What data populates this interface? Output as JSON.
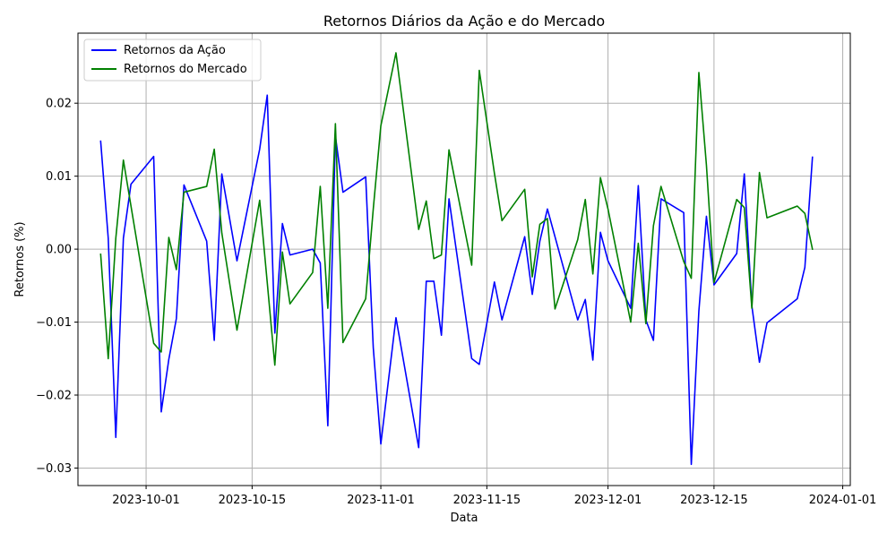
{
  "chart_data": {
    "type": "line",
    "title": "Retornos Diários da Ação e do Mercado",
    "xlabel": "Data",
    "ylabel": "Retornos (%)",
    "x_axis_type": "date",
    "xlim": [
      "2023-09-22",
      "2024-01-02"
    ],
    "ylim": [
      -0.0324,
      0.0296
    ],
    "grid": true,
    "legend_position": "upper-left",
    "x_ticks": [
      {
        "date": "2023-10-01",
        "label": "2023-10-01"
      },
      {
        "date": "2023-10-15",
        "label": "2023-10-15"
      },
      {
        "date": "2023-11-01",
        "label": "2023-11-01"
      },
      {
        "date": "2023-11-15",
        "label": "2023-11-15"
      },
      {
        "date": "2023-12-01",
        "label": "2023-12-01"
      },
      {
        "date": "2023-12-15",
        "label": "2023-12-15"
      },
      {
        "date": "2024-01-01",
        "label": "2024-01-01"
      }
    ],
    "y_ticks": [
      {
        "value": -0.03,
        "label": "−0.03"
      },
      {
        "value": -0.02,
        "label": "−0.02"
      },
      {
        "value": -0.01,
        "label": "−0.01"
      },
      {
        "value": 0.0,
        "label": "0.00"
      },
      {
        "value": 0.01,
        "label": "0.01"
      },
      {
        "value": 0.02,
        "label": "0.02"
      }
    ],
    "series": [
      {
        "name": "Retornos da Ação",
        "color": "#0000ff",
        "points": [
          {
            "x": "2023-09-25",
            "y": 0.0148
          },
          {
            "x": "2023-09-26",
            "y": 0.0015
          },
          {
            "x": "2023-09-27",
            "y": -0.0258
          },
          {
            "x": "2023-09-28",
            "y": 0.0015
          },
          {
            "x": "2023-09-29",
            "y": 0.0089
          },
          {
            "x": "2023-10-02",
            "y": 0.0127
          },
          {
            "x": "2023-10-03",
            "y": -0.0223
          },
          {
            "x": "2023-10-04",
            "y": -0.0151
          },
          {
            "x": "2023-10-05",
            "y": -0.0095
          },
          {
            "x": "2023-10-06",
            "y": 0.0088
          },
          {
            "x": "2023-10-09",
            "y": 0.0011
          },
          {
            "x": "2023-10-10",
            "y": -0.0125
          },
          {
            "x": "2023-10-11",
            "y": 0.0103
          },
          {
            "x": "2023-10-13",
            "y": -0.0016
          },
          {
            "x": "2023-10-16",
            "y": 0.0137
          },
          {
            "x": "2023-10-17",
            "y": 0.0211
          },
          {
            "x": "2023-10-18",
            "y": -0.0115
          },
          {
            "x": "2023-10-19",
            "y": 0.0035
          },
          {
            "x": "2023-10-20",
            "y": -0.0008
          },
          {
            "x": "2023-10-23",
            "y": 0.0
          },
          {
            "x": "2023-10-24",
            "y": -0.0019
          },
          {
            "x": "2023-10-25",
            "y": -0.0242
          },
          {
            "x": "2023-10-26",
            "y": 0.0155
          },
          {
            "x": "2023-10-27",
            "y": 0.0078
          },
          {
            "x": "2023-10-30",
            "y": 0.0099
          },
          {
            "x": "2023-10-31",
            "y": -0.0135
          },
          {
            "x": "2023-11-01",
            "y": -0.0267
          },
          {
            "x": "2023-11-03",
            "y": -0.0094
          },
          {
            "x": "2023-11-06",
            "y": -0.0272
          },
          {
            "x": "2023-11-07",
            "y": -0.0044
          },
          {
            "x": "2023-11-08",
            "y": -0.0044
          },
          {
            "x": "2023-11-09",
            "y": -0.0118
          },
          {
            "x": "2023-11-10",
            "y": 0.0069
          },
          {
            "x": "2023-11-13",
            "y": -0.015
          },
          {
            "x": "2023-11-14",
            "y": -0.0158
          },
          {
            "x": "2023-11-16",
            "y": -0.0045
          },
          {
            "x": "2023-11-17",
            "y": -0.0097
          },
          {
            "x": "2023-11-20",
            "y": 0.0017
          },
          {
            "x": "2023-11-21",
            "y": -0.0062
          },
          {
            "x": "2023-11-22",
            "y": 0.0011
          },
          {
            "x": "2023-11-23",
            "y": 0.0055
          },
          {
            "x": "2023-11-27",
            "y": -0.0097
          },
          {
            "x": "2023-11-28",
            "y": -0.0069
          },
          {
            "x": "2023-11-29",
            "y": -0.0152
          },
          {
            "x": "2023-11-30",
            "y": 0.0023
          },
          {
            "x": "2023-12-01",
            "y": -0.0016
          },
          {
            "x": "2023-12-04",
            "y": -0.0081
          },
          {
            "x": "2023-12-05",
            "y": 0.0087
          },
          {
            "x": "2023-12-06",
            "y": -0.0097
          },
          {
            "x": "2023-12-07",
            "y": -0.0125
          },
          {
            "x": "2023-12-08",
            "y": 0.0069
          },
          {
            "x": "2023-12-11",
            "y": 0.005
          },
          {
            "x": "2023-12-12",
            "y": -0.0295
          },
          {
            "x": "2023-12-13",
            "y": -0.0085
          },
          {
            "x": "2023-12-14",
            "y": 0.0045
          },
          {
            "x": "2023-12-15",
            "y": -0.0049
          },
          {
            "x": "2023-12-18",
            "y": -0.0006
          },
          {
            "x": "2023-12-19",
            "y": 0.0103
          },
          {
            "x": "2023-12-20",
            "y": -0.0078
          },
          {
            "x": "2023-12-21",
            "y": -0.0155
          },
          {
            "x": "2023-12-22",
            "y": -0.0101
          },
          {
            "x": "2023-12-26",
            "y": -0.0068
          },
          {
            "x": "2023-12-27",
            "y": -0.0025
          },
          {
            "x": "2023-12-28",
            "y": 0.0126
          }
        ]
      },
      {
        "name": "Retornos do Mercado",
        "color": "#008000",
        "points": [
          {
            "x": "2023-09-25",
            "y": -0.0007
          },
          {
            "x": "2023-09-26",
            "y": -0.015
          },
          {
            "x": "2023-09-27",
            "y": 0.0015
          },
          {
            "x": "2023-09-28",
            "y": 0.0122
          },
          {
            "x": "2023-10-02",
            "y": -0.0129
          },
          {
            "x": "2023-10-03",
            "y": -0.0141
          },
          {
            "x": "2023-10-04",
            "y": 0.0016
          },
          {
            "x": "2023-10-05",
            "y": -0.0028
          },
          {
            "x": "2023-10-06",
            "y": 0.0078
          },
          {
            "x": "2023-10-09",
            "y": 0.0086
          },
          {
            "x": "2023-10-10",
            "y": 0.0137
          },
          {
            "x": "2023-10-11",
            "y": 0.0022
          },
          {
            "x": "2023-10-13",
            "y": -0.0111
          },
          {
            "x": "2023-10-16",
            "y": 0.0067
          },
          {
            "x": "2023-10-18",
            "y": -0.0159
          },
          {
            "x": "2023-10-19",
            "y": -0.0004
          },
          {
            "x": "2023-10-20",
            "y": -0.0075
          },
          {
            "x": "2023-10-23",
            "y": -0.0032
          },
          {
            "x": "2023-10-24",
            "y": 0.0086
          },
          {
            "x": "2023-10-25",
            "y": -0.0081
          },
          {
            "x": "2023-10-26",
            "y": 0.0172
          },
          {
            "x": "2023-10-27",
            "y": -0.0128
          },
          {
            "x": "2023-10-30",
            "y": -0.0068
          },
          {
            "x": "2023-10-31",
            "y": 0.0055
          },
          {
            "x": "2023-11-01",
            "y": 0.0169
          },
          {
            "x": "2023-11-03",
            "y": 0.0269
          },
          {
            "x": "2023-11-06",
            "y": 0.0027
          },
          {
            "x": "2023-11-07",
            "y": 0.0066
          },
          {
            "x": "2023-11-08",
            "y": -0.0013
          },
          {
            "x": "2023-11-09",
            "y": -0.0008
          },
          {
            "x": "2023-11-10",
            "y": 0.0136
          },
          {
            "x": "2023-11-13",
            "y": -0.0022
          },
          {
            "x": "2023-11-14",
            "y": 0.0245
          },
          {
            "x": "2023-11-16",
            "y": 0.0104
          },
          {
            "x": "2023-11-17",
            "y": 0.0039
          },
          {
            "x": "2023-11-20",
            "y": 0.0082
          },
          {
            "x": "2023-11-21",
            "y": -0.0038
          },
          {
            "x": "2023-11-22",
            "y": 0.0034
          },
          {
            "x": "2023-11-23",
            "y": 0.0042
          },
          {
            "x": "2023-11-24",
            "y": -0.0082
          },
          {
            "x": "2023-11-27",
            "y": 0.0013
          },
          {
            "x": "2023-11-28",
            "y": 0.0068
          },
          {
            "x": "2023-11-29",
            "y": -0.0034
          },
          {
            "x": "2023-11-30",
            "y": 0.0098
          },
          {
            "x": "2023-12-01",
            "y": 0.0055
          },
          {
            "x": "2023-12-04",
            "y": -0.01
          },
          {
            "x": "2023-12-05",
            "y": 0.0008
          },
          {
            "x": "2023-12-06",
            "y": -0.0102
          },
          {
            "x": "2023-12-07",
            "y": 0.0032
          },
          {
            "x": "2023-12-08",
            "y": 0.0086
          },
          {
            "x": "2023-12-11",
            "y": -0.0017
          },
          {
            "x": "2023-12-12",
            "y": -0.004
          },
          {
            "x": "2023-12-13",
            "y": 0.0242
          },
          {
            "x": "2023-12-14",
            "y": 0.0115
          },
          {
            "x": "2023-12-15",
            "y": -0.0046
          },
          {
            "x": "2023-12-18",
            "y": 0.0068
          },
          {
            "x": "2023-12-19",
            "y": 0.0057
          },
          {
            "x": "2023-12-20",
            "y": -0.0081
          },
          {
            "x": "2023-12-21",
            "y": 0.0105
          },
          {
            "x": "2023-12-22",
            "y": 0.0043
          },
          {
            "x": "2023-12-26",
            "y": 0.0059
          },
          {
            "x": "2023-12-27",
            "y": 0.0049
          },
          {
            "x": "2023-12-28",
            "y": 0.0
          }
        ]
      }
    ]
  }
}
